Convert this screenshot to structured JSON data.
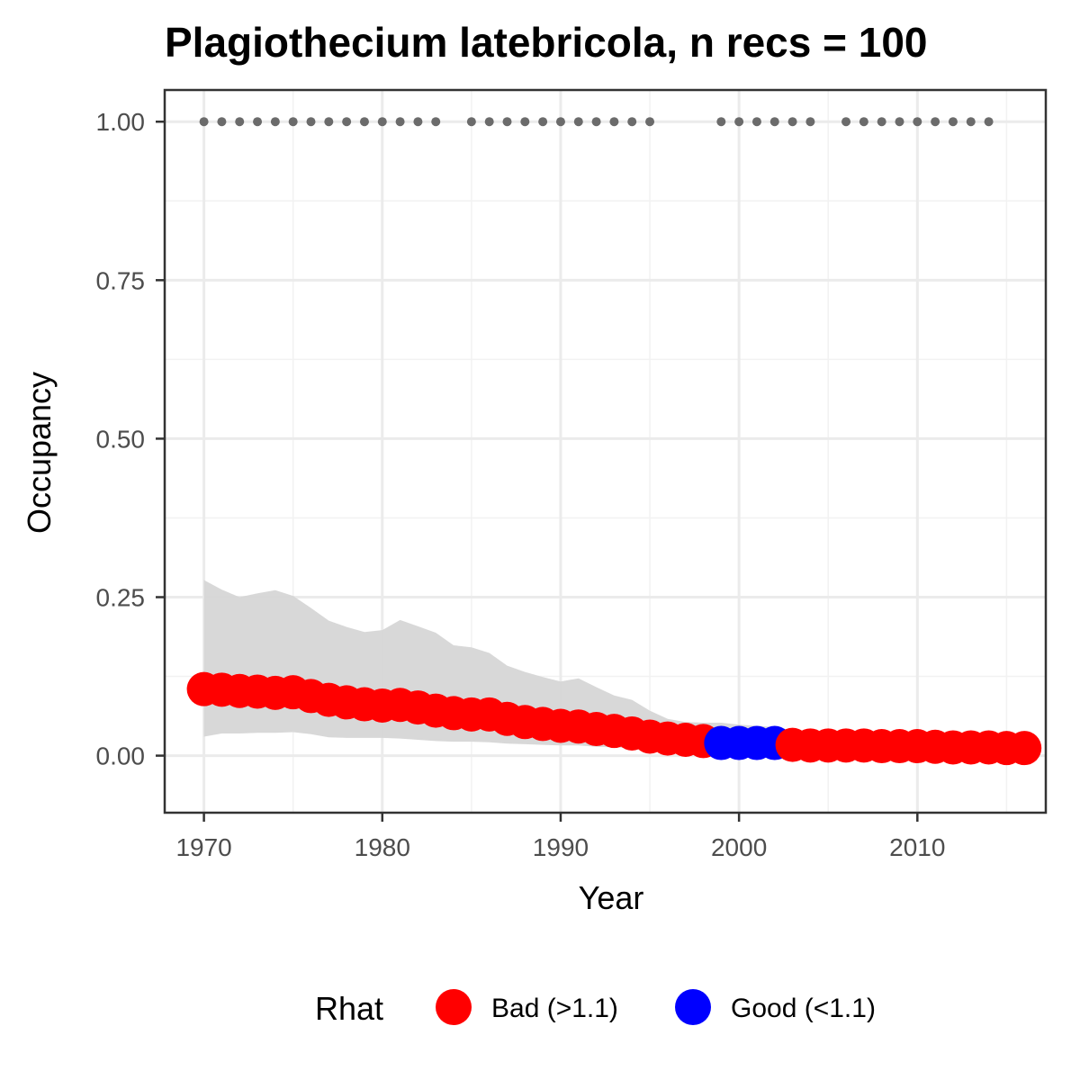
{
  "chart_data": {
    "type": "line",
    "title": "Plagiothecium latebricola, n recs = 100",
    "xlabel": "Year",
    "ylabel": "Occupancy",
    "xlim": [
      1967.8,
      2017.2
    ],
    "ylim": [
      -0.09,
      1.05
    ],
    "x_ticks": [
      1970,
      1980,
      1990,
      2000,
      2010
    ],
    "x_tick_labels": [
      "1970",
      "1980",
      "1990",
      "2000",
      "2010"
    ],
    "y_ticks": [
      0,
      0.25,
      0.5,
      0.75,
      1.0
    ],
    "y_tick_labels": [
      "0.00",
      "0.25",
      "0.50",
      "0.75",
      "1.00"
    ],
    "grid": true,
    "legend": {
      "title": "Rhat",
      "position": "bottom",
      "entries": [
        {
          "label": "Bad (>1.1)",
          "color": "#ff0000"
        },
        {
          "label": "Good (<1.1)",
          "color": "#0000ff"
        }
      ]
    },
    "colors": {
      "bad": "#ff0000",
      "good": "#0000ff",
      "ribbon": "#d6d6d6",
      "records": "#6b6b6b"
    },
    "years": [
      1970,
      1971,
      1972,
      1973,
      1974,
      1975,
      1976,
      1977,
      1978,
      1979,
      1980,
      1981,
      1982,
      1983,
      1984,
      1985,
      1986,
      1987,
      1988,
      1989,
      1990,
      1991,
      1992,
      1993,
      1994,
      1995,
      1996,
      1997,
      1998,
      1999,
      2000,
      2001,
      2002,
      2003,
      2004,
      2005,
      2006,
      2007,
      2008,
      2009,
      2010,
      2011,
      2012,
      2013,
      2014,
      2015,
      2016
    ],
    "occupancy": [
      0.105,
      0.104,
      0.102,
      0.101,
      0.099,
      0.1,
      0.094,
      0.088,
      0.084,
      0.081,
      0.079,
      0.08,
      0.076,
      0.071,
      0.067,
      0.065,
      0.065,
      0.058,
      0.053,
      0.05,
      0.047,
      0.046,
      0.042,
      0.039,
      0.035,
      0.03,
      0.027,
      0.025,
      0.023,
      0.02,
      0.02,
      0.02,
      0.02,
      0.017,
      0.016,
      0.016,
      0.016,
      0.016,
      0.015,
      0.015,
      0.015,
      0.014,
      0.013,
      0.013,
      0.013,
      0.012,
      0.012
    ],
    "rhat": [
      "Bad",
      "Bad",
      "Bad",
      "Bad",
      "Bad",
      "Bad",
      "Bad",
      "Bad",
      "Bad",
      "Bad",
      "Bad",
      "Bad",
      "Bad",
      "Bad",
      "Bad",
      "Bad",
      "Bad",
      "Bad",
      "Bad",
      "Bad",
      "Bad",
      "Bad",
      "Bad",
      "Bad",
      "Bad",
      "Bad",
      "Bad",
      "Bad",
      "Bad",
      "Good",
      "Good",
      "Good",
      "Good",
      "Bad",
      "Bad",
      "Bad",
      "Bad",
      "Bad",
      "Bad",
      "Bad",
      "Bad",
      "Bad",
      "Bad",
      "Bad",
      "Bad",
      "Bad",
      "Bad"
    ],
    "ci_upper": [
      0.277,
      0.262,
      0.25,
      0.256,
      0.261,
      0.252,
      0.233,
      0.213,
      0.203,
      0.195,
      0.198,
      0.214,
      0.204,
      0.194,
      0.174,
      0.171,
      0.162,
      0.142,
      0.132,
      0.124,
      0.117,
      0.122,
      0.108,
      0.095,
      0.088,
      0.071,
      0.058,
      0.053,
      0.052,
      0.052,
      0.049,
      0.047,
      0.045,
      0.04,
      0.038,
      0.037,
      0.036,
      0.035,
      0.035,
      0.034,
      0.034,
      0.033,
      0.033,
      0.032,
      0.032,
      0.031,
      0.031
    ],
    "ci_lower": [
      0.03,
      0.035,
      0.035,
      0.036,
      0.036,
      0.037,
      0.034,
      0.029,
      0.028,
      0.028,
      0.028,
      0.027,
      0.025,
      0.023,
      0.022,
      0.022,
      0.021,
      0.019,
      0.018,
      0.017,
      0.016,
      0.016,
      0.014,
      0.013,
      0.012,
      0.011,
      0.01,
      0.009,
      0.008,
      0.007,
      0.007,
      0.007,
      0.007,
      0.006,
      0.006,
      0.005,
      0.005,
      0.005,
      0.005,
      0.005,
      0.005,
      0.004,
      0.004,
      0.004,
      0.004,
      0.004,
      0.004
    ],
    "record_years": [
      1970,
      1971,
      1972,
      1973,
      1974,
      1975,
      1976,
      1977,
      1978,
      1979,
      1980,
      1981,
      1982,
      1983,
      1985,
      1986,
      1987,
      1988,
      1989,
      1990,
      1991,
      1992,
      1993,
      1994,
      1995,
      1999,
      2000,
      2001,
      2002,
      2003,
      2004,
      2006,
      2007,
      2008,
      2009,
      2010,
      2011,
      2012,
      2013,
      2014
    ],
    "record_value": 1.0
  }
}
